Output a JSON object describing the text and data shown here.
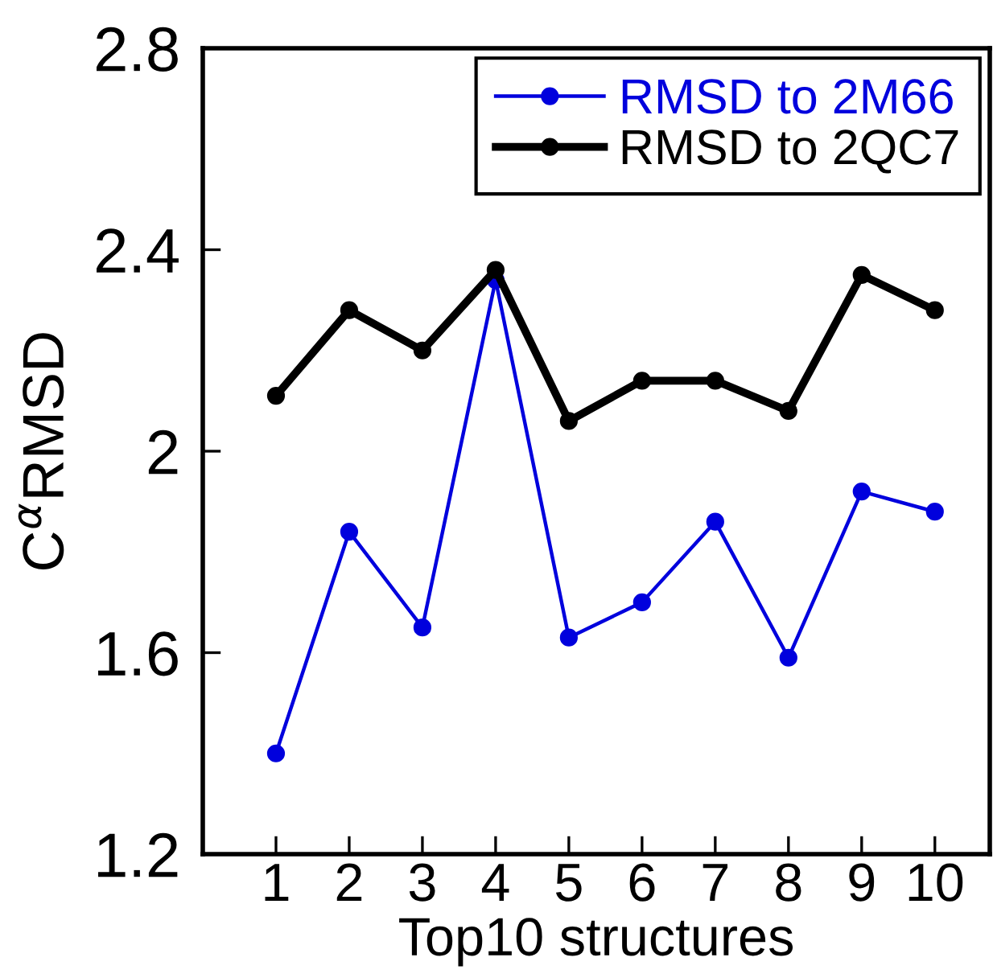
{
  "chart_data": {
    "type": "line",
    "xlabel": "Top10 structures",
    "ylabel": "C$^{α}$RMSD",
    "x": [
      1,
      2,
      3,
      4,
      5,
      6,
      7,
      8,
      9,
      10
    ],
    "series": [
      {
        "name": "RMSD to 2M66",
        "color": "#0000dd",
        "values": [
          1.4,
          1.84,
          1.65,
          2.34,
          1.63,
          1.7,
          1.86,
          1.59,
          1.92,
          1.88
        ]
      },
      {
        "name": "RMSD to 2QC7",
        "color": "#000000",
        "values": [
          2.11,
          2.28,
          2.2,
          2.36,
          2.06,
          2.14,
          2.14,
          2.08,
          2.35,
          2.28
        ]
      }
    ],
    "xlim": [
      0,
      10.75
    ],
    "xticks": [
      1,
      2,
      3,
      4,
      5,
      6,
      7,
      8,
      9,
      10
    ],
    "ylim": [
      1.2,
      2.8
    ],
    "yticks": [
      1.2,
      1.6,
      2,
      2.4,
      2.8
    ],
    "grid": false,
    "legend": "top right",
    "marker": "circle",
    "line_style": "solid"
  }
}
